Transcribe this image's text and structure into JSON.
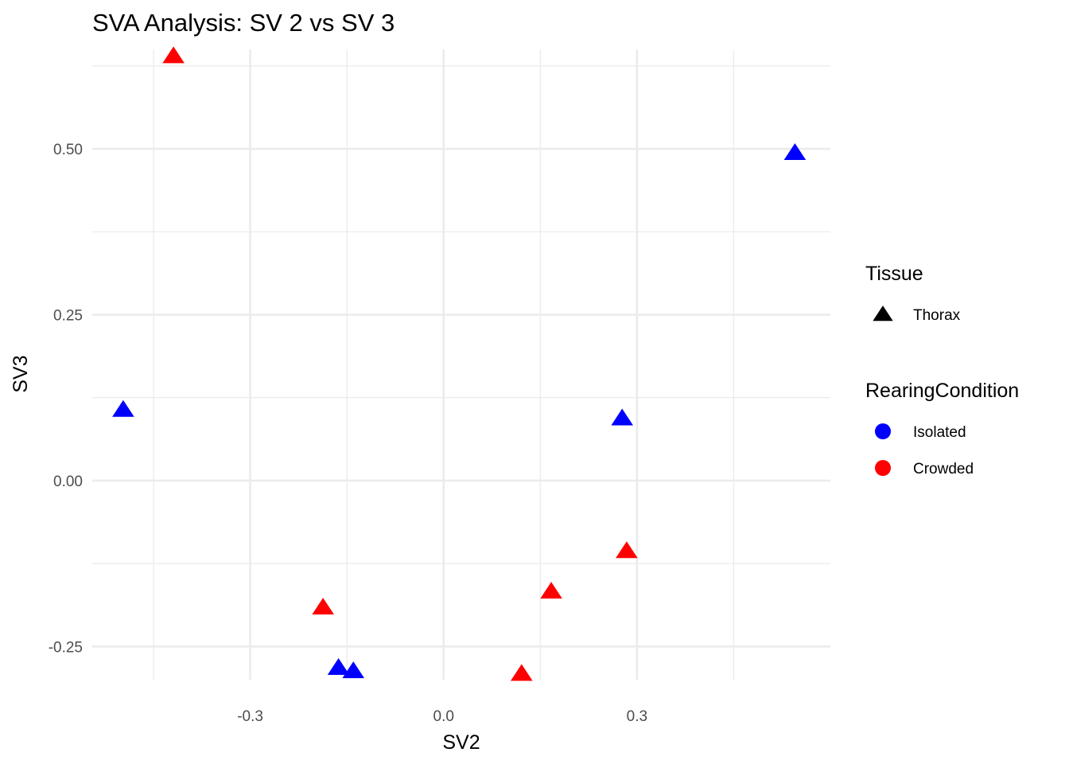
{
  "chart_data": {
    "type": "scatter",
    "title": "SVA Analysis: SV 2  vs SV 3",
    "xlabel": "SV2",
    "ylabel": "SV3",
    "xlim": [
      -0.545,
      0.6
    ],
    "ylim": [
      -0.3,
      0.65
    ],
    "x_ticks": [
      -0.3,
      0.0,
      0.3
    ],
    "x_tick_labels": [
      "-0.3",
      "0.0",
      "0.3"
    ],
    "x_minor_ticks": [
      -0.45,
      -0.15,
      0.15,
      0.45
    ],
    "y_ticks": [
      -0.25,
      0.0,
      0.25,
      0.5
    ],
    "y_tick_labels": [
      "-0.25",
      "0.00",
      "0.25",
      "0.50"
    ],
    "y_minor_ticks": [
      -0.125,
      0.125,
      0.375,
      0.625
    ],
    "grid": true,
    "legend_position": "right",
    "legends": [
      {
        "title": "Tissue",
        "shape": "triangle",
        "items": [
          {
            "label": "Thorax",
            "color": "#000000"
          }
        ]
      },
      {
        "title": "RearingCondition",
        "shape": "circle",
        "items": [
          {
            "label": "Isolated",
            "color": "#0000ff"
          },
          {
            "label": "Crowded",
            "color": "#ff0000"
          }
        ]
      }
    ],
    "series": [
      {
        "name": "Isolated",
        "color": "#0000ff",
        "marker": "triangle",
        "points": [
          [
            -0.497,
            0.107
          ],
          [
            0.277,
            0.094
          ],
          [
            0.545,
            0.494
          ],
          [
            -0.163,
            -0.282
          ],
          [
            -0.14,
            -0.287
          ]
        ]
      },
      {
        "name": "Crowded",
        "color": "#ff0000",
        "marker": "triangle",
        "points": [
          [
            -0.419,
            0.64
          ],
          [
            -0.187,
            -0.191
          ],
          [
            0.121,
            -0.291
          ],
          [
            0.167,
            -0.167
          ],
          [
            0.284,
            -0.106
          ]
        ]
      }
    ]
  }
}
